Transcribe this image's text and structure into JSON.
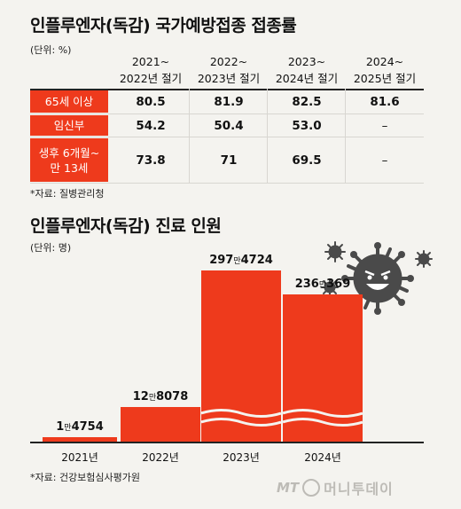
{
  "table": {
    "title": "인플루엔자(독감) 국가예방접종 접종률",
    "unit": "(단위: %)",
    "columns": [
      [
        "2021~",
        "2022년 절기"
      ],
      [
        "2022~",
        "2023년 절기"
      ],
      [
        "2023~",
        "2024년 절기"
      ],
      [
        "2024~",
        "2025년 절기"
      ]
    ],
    "rows": [
      {
        "label": [
          "65세 이상"
        ],
        "values": [
          "80.5",
          "81.9",
          "82.5",
          "81.6"
        ]
      },
      {
        "label": [
          "임신부"
        ],
        "values": [
          "54.2",
          "50.4",
          "53.0",
          "–"
        ]
      },
      {
        "label": [
          "생후 6개월~",
          "만 13세"
        ],
        "values": [
          "73.8",
          "71",
          "69.5",
          "–"
        ]
      }
    ],
    "source": "*자료: 질병관리청"
  },
  "chart_data": {
    "type": "bar",
    "title": "인플루엔자(독감) 진료 인원",
    "unit": "(단위: 명)",
    "categories": [
      "2021년",
      "2022년",
      "2023년",
      "2024년"
    ],
    "values": [
      14754,
      128078,
      2974724,
      2360369
    ],
    "value_labels": [
      {
        "pre": "1",
        "man": "만",
        "post": "4754"
      },
      {
        "pre": "12",
        "man": "만",
        "post": "8078"
      },
      {
        "pre": "297",
        "man": "만",
        "post": "4724"
      },
      {
        "pre": "236",
        "man": "만",
        "post": "369"
      }
    ],
    "axis_break": true,
    "bar_color": "#ee3a1c",
    "source": "*자료: 건강보험심사평가원"
  },
  "watermark": "머니투데이"
}
